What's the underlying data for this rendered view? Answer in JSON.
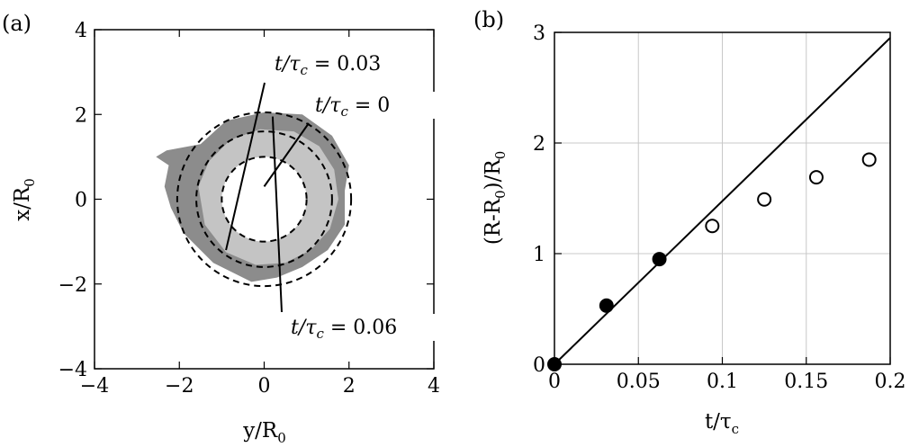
{
  "chart_data": [
    {
      "panel_label": "(a)",
      "type": "contour",
      "xlabel_main": "y/R",
      "xlabel_sub": "0",
      "ylabel_main": "x/R",
      "ylabel_sub": "0",
      "xlim": [
        -4,
        4
      ],
      "ylim": [
        4,
        -4
      ],
      "xticks": [
        "−4",
        "−2",
        "0",
        "2",
        "4"
      ],
      "yticks": [
        "−4",
        "−2",
        "0",
        "2",
        "4"
      ],
      "xtick_values": [
        -4,
        -2,
        0,
        2,
        4
      ],
      "ytick_values": [
        -4,
        -2,
        0,
        2,
        4
      ],
      "fill_colors": {
        "outer": "#8c8c8c",
        "inner": "#c4c4c4"
      },
      "dashed_circles": [
        {
          "radius": 1.0
        },
        {
          "radius": 1.6
        },
        {
          "radius": 2.05
        }
      ],
      "annotations": [
        {
          "text": "t/τc = 0.03",
          "target": [
            -0.9,
            -1.2
          ]
        },
        {
          "text": "t/τc = 0",
          "target": [
            0.0,
            0.3
          ]
        },
        {
          "text": "t/τc = 0.06",
          "target": [
            0.2,
            1.95
          ]
        }
      ],
      "annotation_parts": [
        {
          "pre": "t/τ",
          "sub": "c",
          "post": " = 0.03"
        },
        {
          "pre": "t/τ",
          "sub": "c",
          "post": " = 0"
        },
        {
          "pre": "t/τ",
          "sub": "c",
          "post": " = 0.06"
        }
      ]
    },
    {
      "panel_label": "(b)",
      "type": "scatter",
      "xlabel_main": "t/τ",
      "xlabel_sub": "c",
      "ylabel_main": "(R-R",
      "ylabel_sub": "0",
      "ylabel_post": ")/R",
      "ylabel_sub2": "0",
      "xlim": [
        0,
        0.2
      ],
      "ylim": [
        0,
        3
      ],
      "grid": true,
      "xticks": [
        "0",
        "0.05",
        "0.1",
        "0.15",
        "0.2"
      ],
      "yticks": [
        "0",
        "1",
        "2",
        "3"
      ],
      "xtick_values": [
        0,
        0.05,
        0.1,
        0.15,
        0.2
      ],
      "ytick_values": [
        0,
        1,
        2,
        3
      ],
      "line": {
        "x": [
          0,
          0.2
        ],
        "y": [
          0,
          2.95
        ]
      },
      "series": [
        {
          "marker": "filled",
          "x": [
            0,
            0.031,
            0.0625
          ],
          "y": [
            0,
            0.53,
            0.95
          ]
        },
        {
          "marker": "open",
          "x": [
            0.094,
            0.125,
            0.156,
            0.1875
          ],
          "y": [
            1.25,
            1.49,
            1.69,
            1.85
          ]
        }
      ]
    }
  ]
}
